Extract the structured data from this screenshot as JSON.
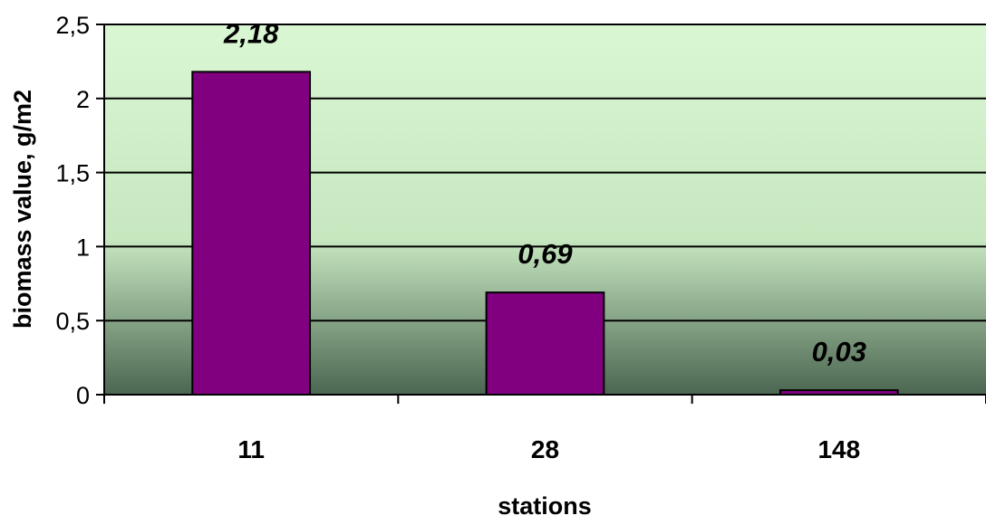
{
  "chart_data": {
    "type": "bar",
    "categories": [
      "11",
      "28",
      "148"
    ],
    "values": [
      2.18,
      0.69,
      0.03
    ],
    "data_labels": [
      "2,18",
      "0,69",
      "0,03"
    ],
    "xlabel": "stations",
    "ylabel": "biomass value, g/m2",
    "ylim": [
      0,
      2.5
    ],
    "yticks": [
      0,
      0.5,
      1,
      1.5,
      2,
      2.5
    ],
    "ytick_labels": [
      "0",
      "0,5",
      "1",
      "1,5",
      "2",
      "2,5"
    ],
    "grid": true,
    "legend": "none",
    "colors": {
      "bar_fill": "#800080",
      "bar_stroke": "#000000",
      "plot_bg_top": "#d9f7d3",
      "plot_bg_mid": "#c7e7c0",
      "plot_bg_bottom": "#4b6651",
      "grid": "#000000"
    }
  }
}
